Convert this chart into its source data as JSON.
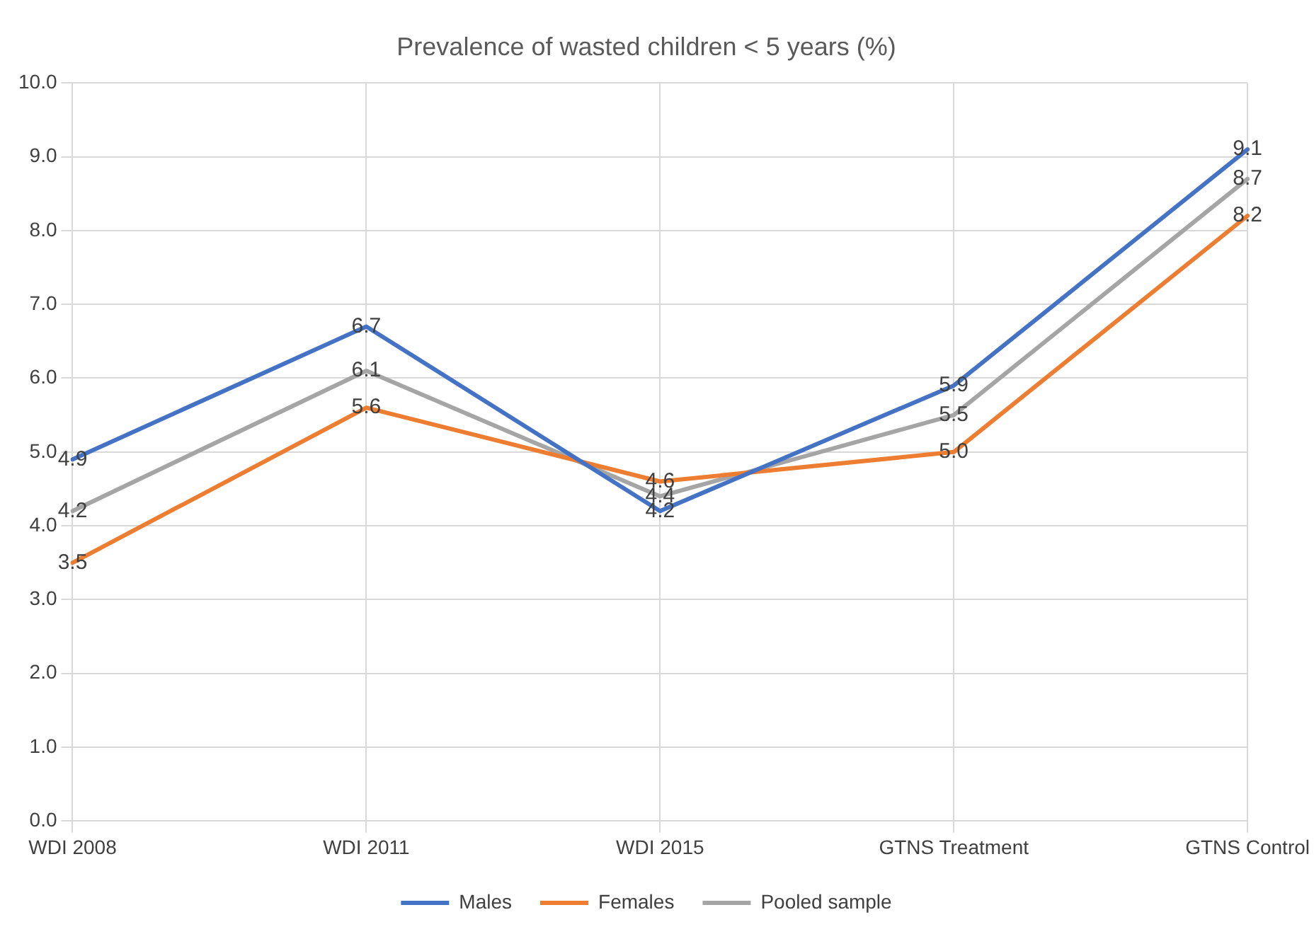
{
  "chart_data": {
    "type": "line",
    "title": "Prevalence of wasted children < 5 years (%)",
    "categories": [
      "WDI 2008",
      "WDI 2011",
      "WDI 2015",
      "GTNS Treatment",
      "GTNS Control"
    ],
    "series": [
      {
        "name": "Males",
        "color": "#4472c4",
        "values": [
          4.9,
          6.7,
          4.2,
          5.9,
          9.1
        ],
        "value_labels": [
          "4.9",
          "6.7",
          "4.2",
          "5.9",
          "9.1"
        ]
      },
      {
        "name": "Females",
        "color": "#ed7d31",
        "values": [
          3.5,
          5.6,
          4.6,
          5.0,
          8.2
        ],
        "value_labels": [
          "3.5",
          "5.6",
          "4.6",
          "5.0",
          "8.2"
        ]
      },
      {
        "name": "Pooled sample",
        "color": "#a5a5a5",
        "values": [
          4.2,
          6.1,
          4.4,
          5.5,
          8.7
        ],
        "value_labels": [
          "4.2",
          "6.1",
          "4.4",
          "5.5",
          "8.7"
        ]
      }
    ],
    "ylim": [
      0,
      10
    ],
    "yticks": [
      {
        "value": 0,
        "label": "0.0"
      },
      {
        "value": 1,
        "label": "1.0"
      },
      {
        "value": 2,
        "label": "2.0"
      },
      {
        "value": 3,
        "label": "3.0"
      },
      {
        "value": 4,
        "label": "4.0"
      },
      {
        "value": 5,
        "label": "5.0"
      },
      {
        "value": 6,
        "label": "6.0"
      },
      {
        "value": 7,
        "label": "7.0"
      },
      {
        "value": 8,
        "label": "8.0"
      },
      {
        "value": 9,
        "label": "9.0"
      },
      {
        "value": 10,
        "label": "10.0"
      }
    ],
    "grid": true,
    "legend": "bottom",
    "marker": "none",
    "line_style": "solid"
  }
}
